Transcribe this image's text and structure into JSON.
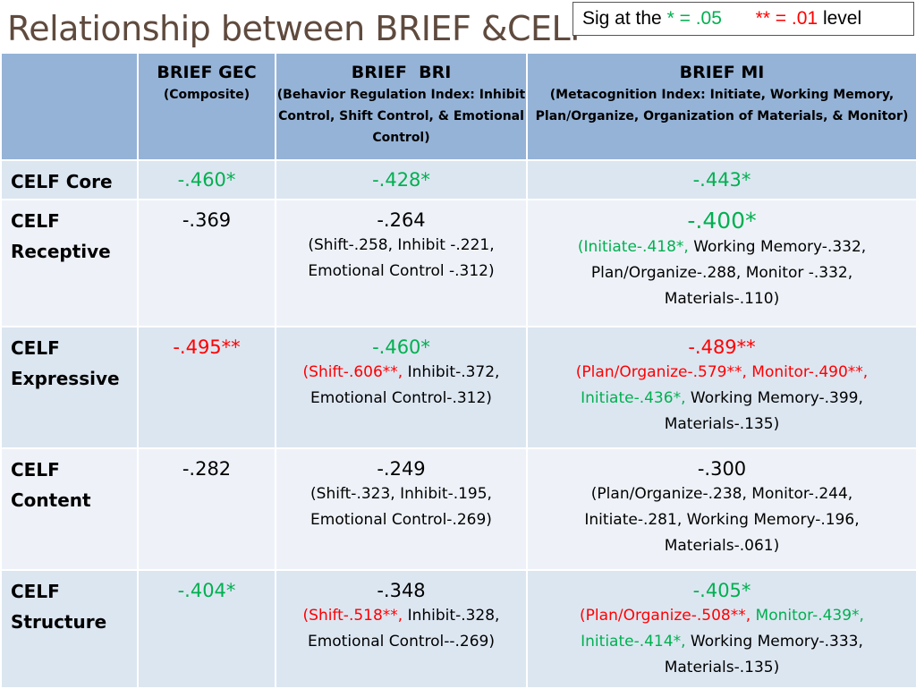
{
  "title": "Relationship between BRIEF &CELF",
  "legend": {
    "prefix": "Sig at the",
    "one_star": "*",
    "one_eq": "= .05",
    "two_star": "**",
    "two_eq": "= .01",
    "suffix": "level"
  },
  "colors": {
    "header_bg": "#95b3d7",
    "row_bg_a": "#dce6f1",
    "row_bg_b": "#eef2f8",
    "sig_05": "#00b050",
    "sig_01": "#ff0000",
    "title": "#5f4a3e"
  },
  "columns": [
    {
      "title": "BRIEF GEC",
      "subtitle": "(Composite)"
    },
    {
      "title": "BRIEF  BRI",
      "subtitle": "(Behavior Regulation Index: Inhibit Control, Shift Control, & Emotional Control)"
    },
    {
      "title": "BRIEF MI",
      "subtitle": "(Metacognition Index: Initiate, Working Memory, Plan/Organize, Organization of Materials, & Monitor)"
    }
  ],
  "rows": [
    {
      "label": "CELF Core",
      "cells": {
        "gec": {
          "main": "-.460*"
        },
        "bri": {
          "main": "-.428*"
        },
        "mi": {
          "main": "-.443*"
        }
      }
    },
    {
      "label": "CELF Receptive",
      "cells": {
        "gec": {
          "main": "-.369"
        },
        "bri": {
          "main": "-.264",
          "d1": "(Shift-.258, Inhibit -.221,",
          "d2": "Emotional Control -.312)"
        },
        "mi": {
          "main": "-.400*",
          "d1a": "(Initiate-.418*,",
          "d1b": " Working Memory-.332,",
          "d2": "Plan/Organize-.288, Monitor -.332,",
          "d3": "Materials-.110)"
        }
      }
    },
    {
      "label": "CELF Expressive",
      "cells": {
        "gec": {
          "main": "-.495**"
        },
        "bri": {
          "main": "-.460*",
          "d1a": "(Shift-.606**,",
          "d1b": " Inhibit-.372,",
          "d2": "Emotional Control-.312)"
        },
        "mi": {
          "main": "-.489**",
          "d1": "(Plan/Organize-.579**, Monitor-.490**,",
          "d2a": "Initiate-.436*,",
          "d2b": " Working Memory-.399,",
          "d3": "Materials-.135)"
        }
      }
    },
    {
      "label": "CELF Content",
      "cells": {
        "gec": {
          "main": "-.282"
        },
        "bri": {
          "main": "-.249",
          "d1": "(Shift-.323, Inhibit-.195,",
          "d2": "Emotional Control-.269)"
        },
        "mi": {
          "main": "-.300",
          "d1": "(Plan/Organize-.238, Monitor-.244,",
          "d2": "Initiate-.281, Working Memory-.196,",
          "d3": "Materials-.061)"
        }
      }
    },
    {
      "label": "CELF Structure",
      "cells": {
        "gec": {
          "main": "-.404*"
        },
        "bri": {
          "main": "-.348",
          "d1a": "(Shift-.518**,",
          "d1b": " Inhibit-.328,",
          "d2": "Emotional Control--.269)"
        },
        "mi": {
          "main": "-.405*",
          "d1a": "(Plan/Organize-.508**,",
          "d1b": " Monitor-.439*,",
          "d2a": "Initiate-.414*,",
          "d2b": " Working Memory-.333,",
          "d3": "Materials-.135)"
        }
      }
    }
  ]
}
